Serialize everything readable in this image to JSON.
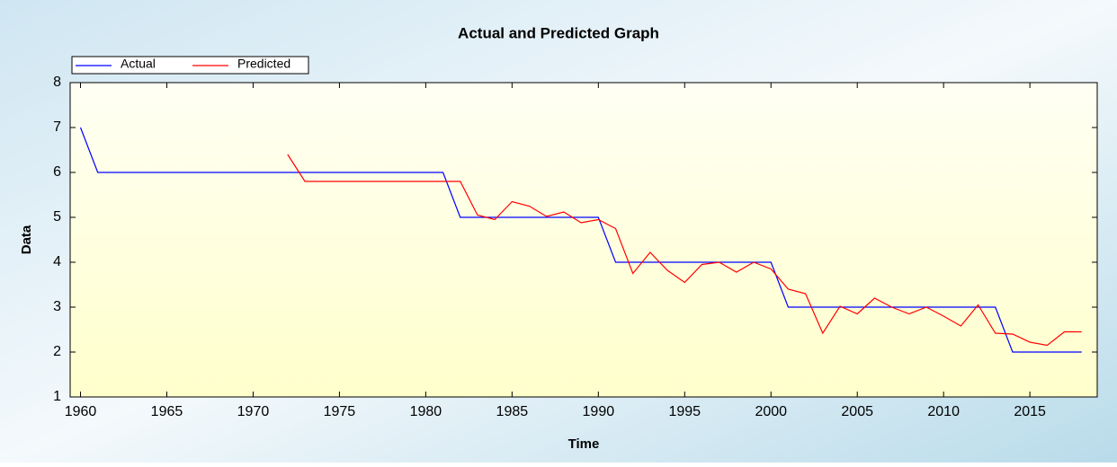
{
  "chart_data": {
    "type": "line",
    "title": "Actual and Predicted Graph",
    "x_label": "Time",
    "y_label": "Data",
    "x": [
      1960,
      1961,
      1962,
      1963,
      1964,
      1965,
      1966,
      1967,
      1968,
      1969,
      1970,
      1971,
      1972,
      1973,
      1974,
      1975,
      1976,
      1977,
      1978,
      1979,
      1980,
      1981,
      1982,
      1983,
      1984,
      1985,
      1986,
      1987,
      1988,
      1989,
      1990,
      1991,
      1992,
      1993,
      1994,
      1995,
      1996,
      1997,
      1998,
      1999,
      2000,
      2001,
      2002,
      2003,
      2004,
      2005,
      2006,
      2007,
      2008,
      2009,
      2010,
      2011,
      2012,
      2013,
      2014,
      2015,
      2016,
      2017,
      2018
    ],
    "series": [
      {
        "name": "Actual",
        "color": "#0000ff",
        "values": [
          7,
          6,
          6,
          6,
          6,
          6,
          6,
          6,
          6,
          6,
          6,
          6,
          6,
          6,
          6,
          6,
          6,
          6,
          6,
          6,
          6,
          6,
          5,
          5,
          5,
          5,
          5,
          5,
          5,
          5,
          5,
          4,
          4,
          4,
          4,
          4,
          4,
          4,
          4,
          4,
          4,
          3,
          3,
          3,
          3,
          3,
          3,
          3,
          3,
          3,
          3,
          3,
          3,
          3,
          2,
          2,
          2,
          2,
          2
        ]
      },
      {
        "name": "Predicted",
        "color": "#ff0000",
        "values": [
          null,
          null,
          null,
          null,
          null,
          null,
          null,
          null,
          null,
          null,
          null,
          null,
          6.4,
          5.8,
          5.8,
          5.8,
          5.8,
          5.8,
          5.8,
          5.8,
          5.8,
          5.8,
          5.8,
          5.05,
          4.95,
          5.35,
          5.25,
          5.02,
          5.12,
          4.88,
          4.95,
          4.75,
          3.75,
          4.22,
          3.82,
          3.55,
          3.95,
          4.0,
          3.78,
          4.0,
          3.85,
          3.4,
          3.3,
          2.42,
          3.02,
          2.85,
          3.2,
          3.0,
          2.85,
          3.0,
          2.8,
          2.58,
          3.05,
          2.42,
          2.4,
          2.22,
          2.15,
          2.45,
          2.45
        ]
      }
    ],
    "xlim": [
      1959.4,
      2018.9
    ],
    "ylim": [
      1,
      8
    ],
    "xticks": [
      1960,
      1965,
      1970,
      1975,
      1980,
      1985,
      1990,
      1995,
      2000,
      2005,
      2010,
      2015
    ],
    "yticks": [
      1,
      2,
      3,
      4,
      5,
      6,
      7,
      8
    ],
    "legend": "top-left"
  }
}
